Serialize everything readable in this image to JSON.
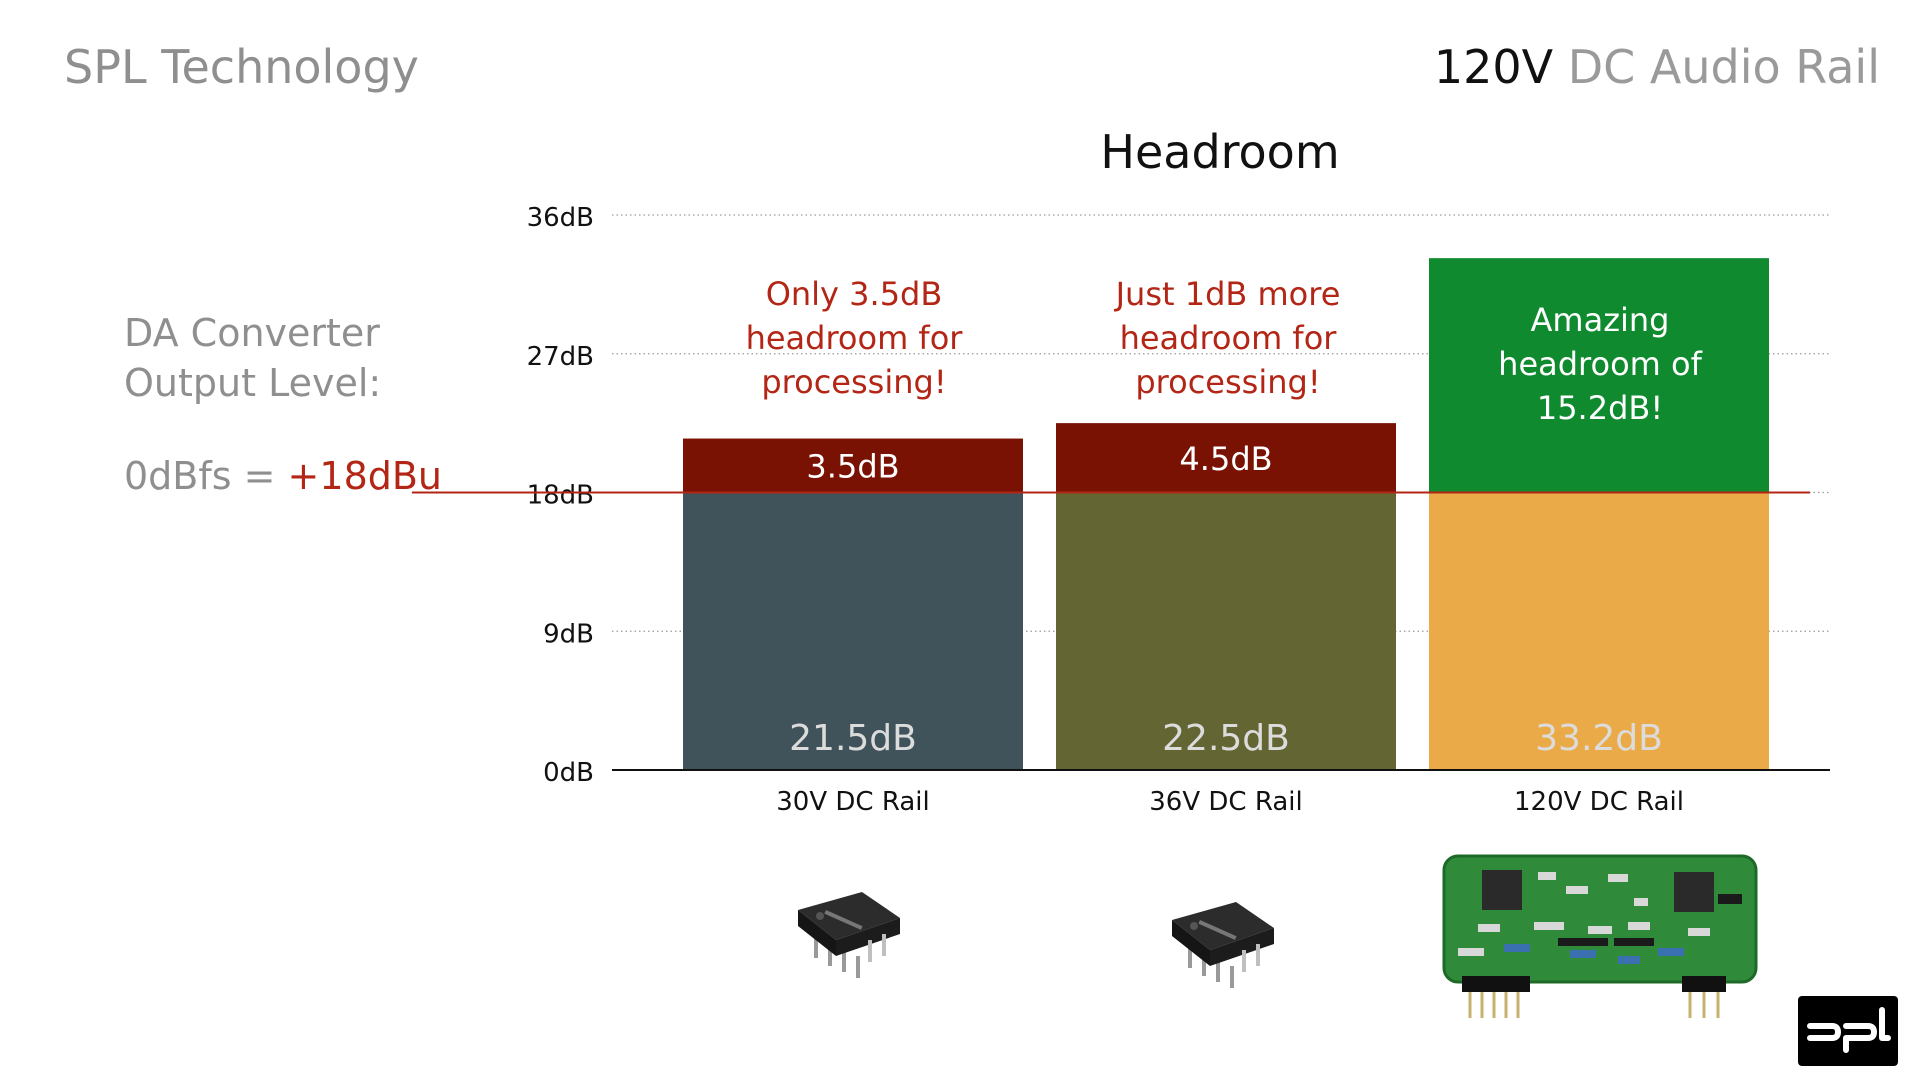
{
  "header": {
    "brand": "SPL Technology",
    "title_em": "120V",
    "title_rest": " DC Audio Rail"
  },
  "side": {
    "label_line1": "DA Converter",
    "label_line2": "Output Level:",
    "formula_prefix": "0dBfs = ",
    "formula_value": "+18dBu"
  },
  "colors": {
    "accent_red": "#b32616",
    "headroom_red": "#7a1204",
    "headroom_green": "#0f8a2e",
    "rail30": "#40535a",
    "rail36": "#636533",
    "rail120": "#eaaa48"
  },
  "icons": [
    "ic-chip-icon",
    "ic-chip-icon",
    "circuit-board-icon",
    "spl-logo-icon"
  ],
  "chart_data": {
    "type": "bar",
    "title": "Headroom",
    "ylim": [
      0,
      36
    ],
    "yticks": [
      "0dB",
      "9dB",
      "18dB",
      "27dB",
      "36dB"
    ],
    "ytick_values": [
      0,
      9,
      18,
      27,
      36
    ],
    "grid": true,
    "reference_value": 18,
    "categories": [
      "30V DC Rail",
      "36V DC Rail",
      "120V DC Rail"
    ],
    "series": [
      {
        "values": [
          18,
          18,
          18
        ],
        "labels": [
          "21.5dB",
          "22.5dB",
          "33.2dB"
        ]
      },
      {
        "values": [
          3.5,
          4.5,
          15.2
        ],
        "labels": [
          "3.5dB",
          "4.5dB",
          ""
        ]
      }
    ],
    "annotations": [
      {
        "lines": [
          "Only 3.5dB",
          "headroom for",
          "processing!"
        ]
      },
      {
        "lines": [
          "Just 1dB more",
          "headroom for",
          "processing!"
        ]
      },
      {
        "lines": [
          "Amazing",
          "headroom of",
          "15.2dB!"
        ]
      }
    ]
  }
}
